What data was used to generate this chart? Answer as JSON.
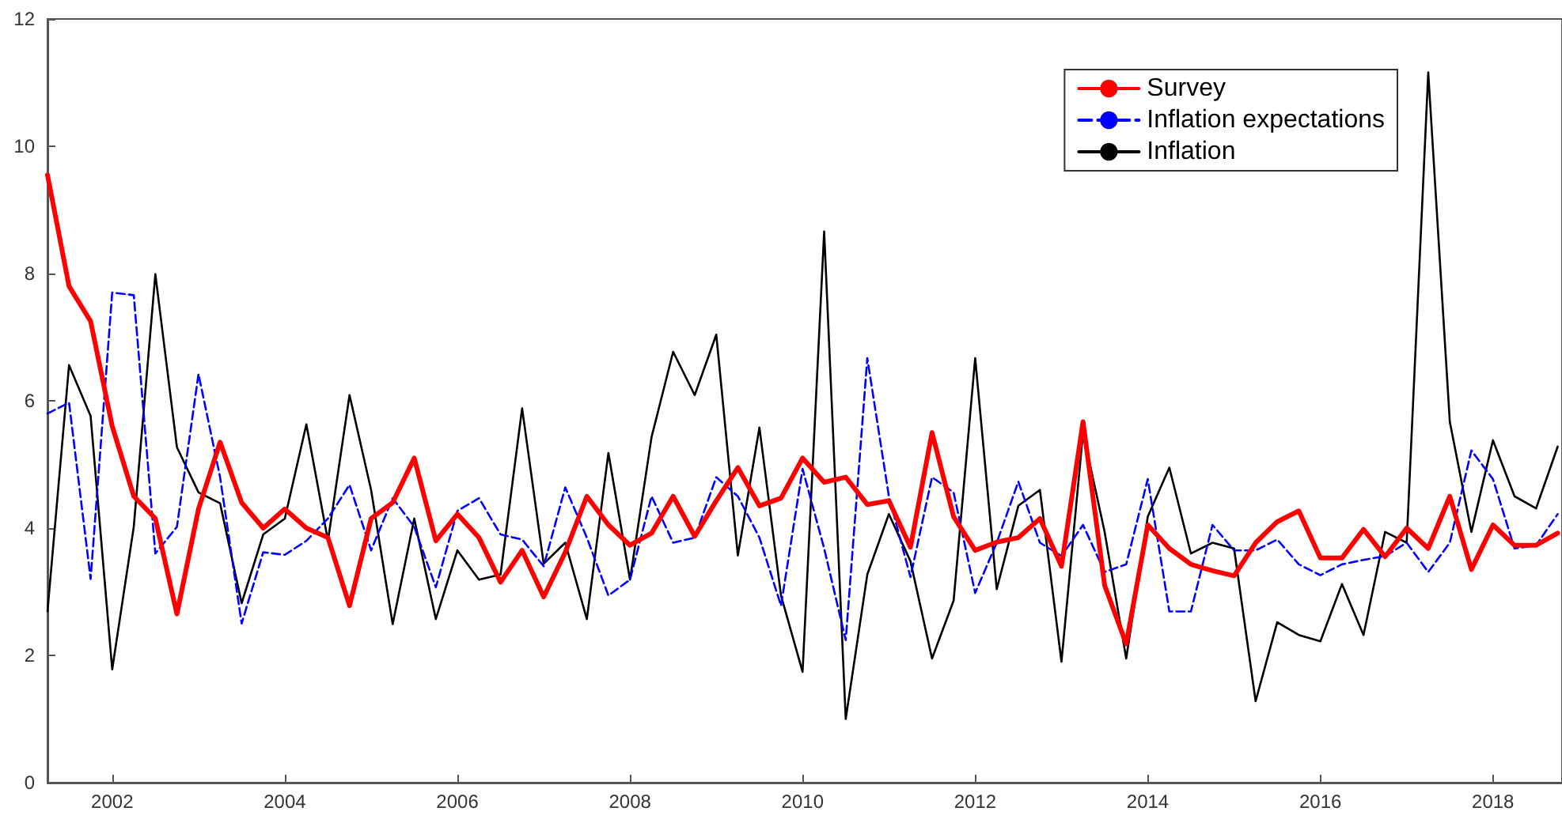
{
  "chart_data": {
    "type": "line",
    "x": [
      2001.25,
      2001.5,
      2001.75,
      2002,
      2002.25,
      2002.5,
      2002.75,
      2003,
      2003.25,
      2003.5,
      2003.75,
      2004,
      2004.25,
      2004.5,
      2004.75,
      2005,
      2005.25,
      2005.5,
      2005.75,
      2006,
      2006.25,
      2006.5,
      2006.75,
      2007,
      2007.25,
      2007.5,
      2007.75,
      2008,
      2008.25,
      2008.5,
      2008.75,
      2009,
      2009.25,
      2009.5,
      2009.75,
      2010,
      2010.25,
      2010.5,
      2010.75,
      2011,
      2011.25,
      2011.5,
      2011.75,
      2012,
      2012.25,
      2012.5,
      2012.75,
      2013,
      2013.25,
      2013.5,
      2013.75,
      2014,
      2014.25,
      2014.5,
      2014.75,
      2015,
      2015.25,
      2015.5,
      2015.75,
      2016,
      2016.25,
      2016.5,
      2016.75,
      2017,
      2017.25,
      2017.5,
      2017.75,
      2018,
      2018.25,
      2018.5,
      2018.75
    ],
    "series": [
      {
        "name": "Survey",
        "color": "#ff0000",
        "line_style": "solid",
        "values": [
          9.55,
          7.8,
          7.25,
          5.6,
          4.5,
          4.15,
          2.65,
          4.3,
          5.35,
          4.4,
          4.0,
          4.3,
          4.0,
          3.85,
          2.78,
          4.15,
          4.4,
          5.1,
          3.8,
          4.22,
          3.85,
          3.15,
          3.65,
          2.92,
          3.62,
          4.5,
          4.05,
          3.73,
          3.92,
          4.5,
          3.87,
          4.43,
          4.95,
          4.35,
          4.47,
          5.1,
          4.72,
          4.8,
          4.37,
          4.43,
          3.7,
          5.5,
          4.18,
          3.65,
          3.78,
          3.85,
          4.15,
          3.4,
          5.67,
          3.1,
          2.18,
          4.05,
          3.68,
          3.43,
          3.33,
          3.25,
          3.77,
          4.1,
          4.27,
          3.53,
          3.53,
          3.98,
          3.55,
          4.0,
          3.68,
          4.5,
          3.35,
          4.05,
          3.73,
          3.73,
          3.92
        ]
      },
      {
        "name": "Inflation expectations",
        "color": "#0000ff",
        "line_style": "dashed",
        "values": [
          5.8,
          5.97,
          3.2,
          7.7,
          7.66,
          3.6,
          4.02,
          6.42,
          4.8,
          2.5,
          3.62,
          3.58,
          3.8,
          4.15,
          4.68,
          3.65,
          4.47,
          4.02,
          3.07,
          4.27,
          4.47,
          3.9,
          3.82,
          3.4,
          4.64,
          3.85,
          2.94,
          3.19,
          4.5,
          3.77,
          3.85,
          4.8,
          4.5,
          3.85,
          2.78,
          4.93,
          3.68,
          2.24,
          6.67,
          4.5,
          3.23,
          4.8,
          4.56,
          2.98,
          3.77,
          4.73,
          3.77,
          3.56,
          4.05,
          3.31,
          3.43,
          4.77,
          2.69,
          2.69,
          4.05,
          3.65,
          3.65,
          3.82,
          3.43,
          3.26,
          3.43,
          3.5,
          3.56,
          3.77,
          3.31,
          3.77,
          5.22,
          4.77,
          3.68,
          3.73,
          4.22
        ]
      },
      {
        "name": "Inflation",
        "color": "#000000",
        "line_style": "solid",
        "values": [
          2.69,
          6.56,
          5.76,
          1.78,
          4.02,
          7.99,
          5.27,
          4.56,
          4.39,
          2.82,
          3.9,
          4.15,
          5.63,
          3.8,
          6.09,
          4.6,
          2.49,
          4.15,
          2.57,
          3.65,
          3.19,
          3.27,
          5.88,
          3.44,
          3.77,
          2.57,
          5.18,
          3.19,
          5.43,
          6.77,
          6.09,
          7.04,
          3.57,
          5.58,
          2.94,
          1.74,
          8.66,
          1.0,
          3.27,
          4.22,
          3.48,
          1.95,
          2.86,
          6.67,
          3.04,
          4.35,
          4.6,
          1.9,
          5.5,
          3.94,
          1.95,
          4.18,
          4.95,
          3.6,
          3.77,
          3.68,
          1.28,
          2.52,
          2.32,
          2.22,
          3.12,
          2.32,
          3.94,
          3.77,
          11.16,
          5.67,
          3.94,
          5.38,
          4.5,
          4.31,
          5.28
        ]
      }
    ],
    "xlim": [
      2001.25,
      2018.8
    ],
    "xticks": [
      2002,
      2004,
      2006,
      2008,
      2010,
      2012,
      2014,
      2016,
      2018
    ],
    "ylim": [
      0,
      12
    ],
    "yticks": [
      0,
      2,
      4,
      6,
      8,
      10,
      12
    ],
    "grid": false,
    "legend": "top right",
    "marker": "none"
  }
}
